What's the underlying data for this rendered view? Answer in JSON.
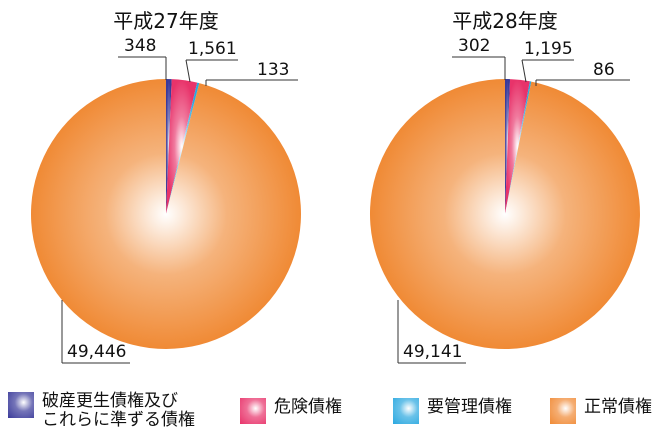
{
  "chart_data": [
    {
      "type": "pie",
      "title": "平成27年度",
      "categories": [
        "破産更生債権及びこれらに準ずる債権",
        "危険債権",
        "要管理債権",
        "正常債権"
      ],
      "values": [
        348,
        1561,
        133,
        49446
      ],
      "value_labels": [
        "348",
        "1,561",
        "133",
        "49,446"
      ],
      "start_angle_deg": 0,
      "direction": "clockwise"
    },
    {
      "type": "pie",
      "title": "平成28年度",
      "categories": [
        "破産更生債権及びこれらに準ずる債権",
        "危険債権",
        "要管理債権",
        "正常債権"
      ],
      "values": [
        302,
        1195,
        86,
        49141
      ],
      "value_labels": [
        "302",
        "1,195",
        "86",
        "49,141"
      ],
      "start_angle_deg": 0,
      "direction": "clockwise"
    }
  ],
  "legend": {
    "placement": "bottom",
    "items": [
      {
        "label": "破産更生債権及び\nこれらに準ずる債権",
        "color": "#3a3a9a"
      },
      {
        "label": "危険債権",
        "color": "#e8336a"
      },
      {
        "label": "要管理債権",
        "color": "#2aa8e0"
      },
      {
        "label": "正常債権",
        "color": "#f08a35"
      }
    ]
  }
}
